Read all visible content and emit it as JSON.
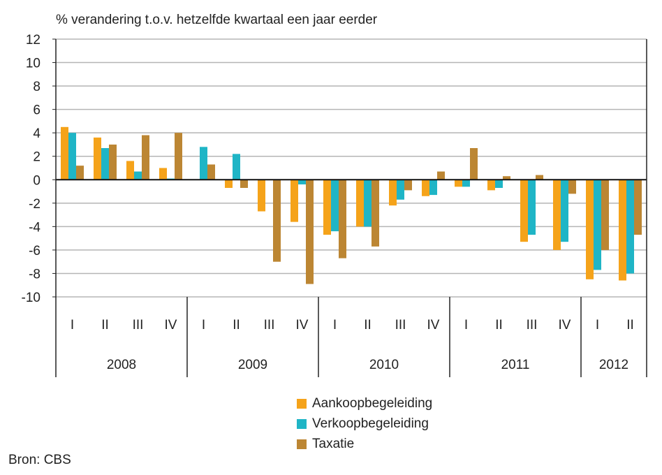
{
  "chart_data": {
    "type": "bar",
    "title": "% verandering t.o.v. hetzelfde kwartaal een jaar eerder",
    "source": "Bron: CBS",
    "ylim": [
      -10,
      12
    ],
    "yticks": [
      "12",
      "10",
      "8",
      "6",
      "4",
      "2",
      "0",
      "-2",
      "-4",
      "-6",
      "-8",
      "-10"
    ],
    "ytick_values": [
      12,
      10,
      8,
      6,
      4,
      2,
      0,
      -2,
      -4,
      -6,
      -8,
      -10
    ],
    "categories": [
      "I",
      "II",
      "III",
      "IV",
      "I",
      "II",
      "III",
      "IV",
      "I",
      "II",
      "III",
      "IV",
      "I",
      "II",
      "III",
      "IV",
      "I",
      "II"
    ],
    "years": [
      {
        "label": "2008",
        "count": 4
      },
      {
        "label": "2009",
        "count": 4
      },
      {
        "label": "2010",
        "count": 4
      },
      {
        "label": "2011",
        "count": 4
      },
      {
        "label": "2012",
        "count": 2
      }
    ],
    "legend_position": "bottom",
    "series": [
      {
        "name": "Aankoopbegeleiding",
        "color": "#F5A31A",
        "values": [
          4.5,
          3.6,
          1.6,
          1.0,
          0,
          -0.7,
          -2.7,
          -3.6,
          -4.7,
          -4.0,
          -2.2,
          -1.4,
          -0.6,
          -0.9,
          -5.3,
          -6.0,
          -8.5,
          -8.6
        ]
      },
      {
        "name": "Verkoopbegeleiding",
        "color": "#1FB5C6",
        "values": [
          4.0,
          2.7,
          0.7,
          0.1,
          2.8,
          2.2,
          0,
          -0.4,
          -4.4,
          -4.0,
          -1.7,
          -1.3,
          -0.6,
          -0.7,
          -4.7,
          -5.3,
          -7.7,
          -8.0
        ]
      },
      {
        "name": "Taxatie",
        "color": "#BC8633",
        "values": [
          1.2,
          3.0,
          3.8,
          4.0,
          1.3,
          -0.7,
          -7.0,
          -8.9,
          -6.7,
          -5.7,
          -0.9,
          0.7,
          2.7,
          0.3,
          0.4,
          -1.2,
          -6.0,
          -4.7
        ]
      }
    ]
  }
}
